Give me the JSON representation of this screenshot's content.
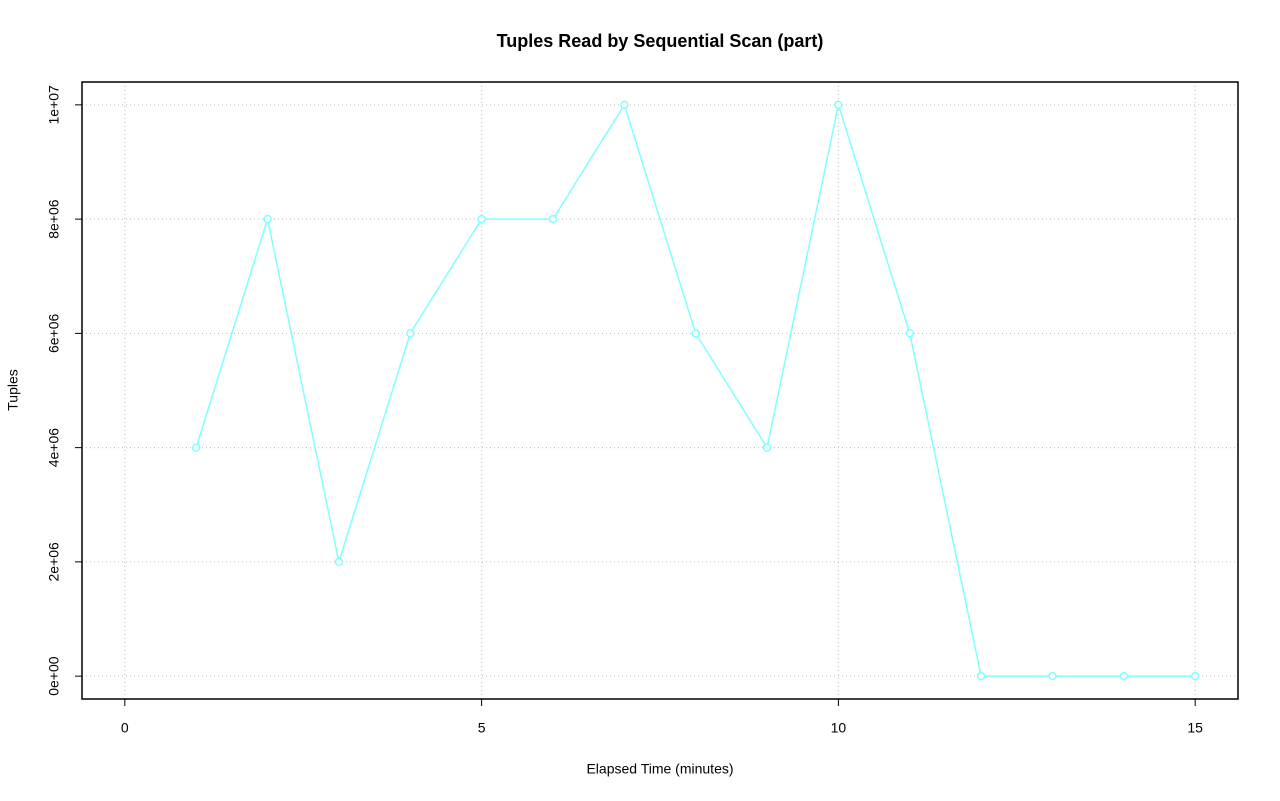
{
  "chart_data": {
    "type": "line",
    "title": "Tuples Read by Sequential Scan (part)",
    "xlabel": "Elapsed Time (minutes)",
    "ylabel": "Tuples",
    "x": [
      1,
      2,
      3,
      4,
      5,
      6,
      7,
      8,
      9,
      10,
      11,
      12,
      13,
      14,
      15
    ],
    "series": [
      {
        "color": "#80ffff",
        "values": [
          4000000,
          8000000,
          2000000,
          6000000,
          8000000,
          8000000,
          10000000,
          6000000,
          4000000,
          10000000,
          6000000,
          0,
          0,
          0,
          0
        ]
      }
    ],
    "xlim": [
      -0.6,
      15.6
    ],
    "ylim": [
      -400000,
      10400000
    ],
    "xticks": [
      0,
      5,
      10,
      15
    ],
    "yticks": [
      {
        "value": 0,
        "label": "0e+00"
      },
      {
        "value": 2000000,
        "label": "2e+06"
      },
      {
        "value": 4000000,
        "label": "4e+06"
      },
      {
        "value": 6000000,
        "label": "6e+06"
      },
      {
        "value": 8000000,
        "label": "8e+06"
      },
      {
        "value": 10000000,
        "label": "1e+07"
      }
    ],
    "grid": true
  }
}
